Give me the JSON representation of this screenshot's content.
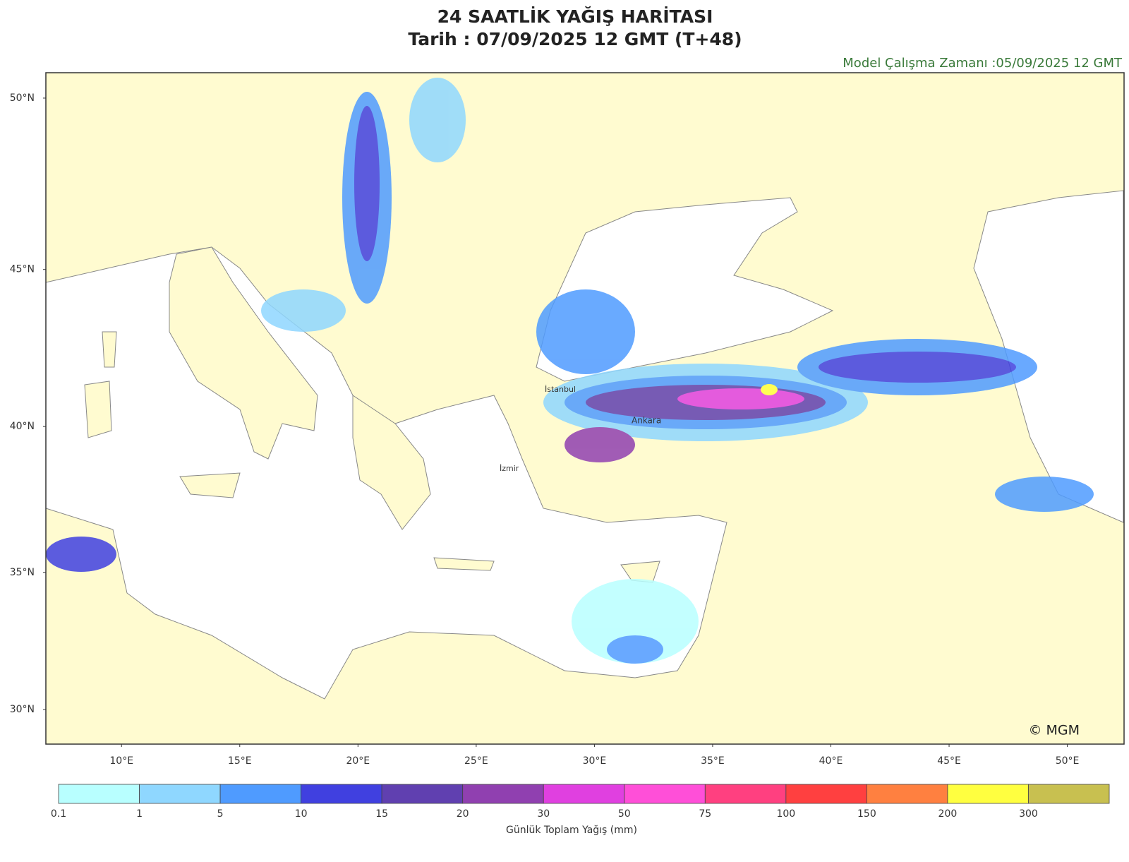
{
  "header": {
    "title": "24 SAATLİK YAĞIŞ HARİTASI",
    "subtitle": "Tarih : 07/09/2025  12 GMT (T+48)",
    "model_run": "Model Çalışma Zamanı :05/09/2025  12 GMT"
  },
  "map": {
    "xlim": [
      6.8,
      52.4
    ],
    "ylim": [
      28.7,
      50.7
    ],
    "xticks": [
      {
        "value": 10,
        "label": "10°E"
      },
      {
        "value": 15,
        "label": "15°E"
      },
      {
        "value": 20,
        "label": "20°E"
      },
      {
        "value": 25,
        "label": "25°E"
      },
      {
        "value": 30,
        "label": "30°E"
      },
      {
        "value": 35,
        "label": "35°E"
      },
      {
        "value": 40,
        "label": "40°E"
      },
      {
        "value": 45,
        "label": "45°E"
      },
      {
        "value": 50,
        "label": "50°E"
      }
    ],
    "yticks": [
      {
        "value": 30,
        "label": "30°N"
      },
      {
        "value": 35,
        "label": "35°N"
      },
      {
        "value": 40,
        "label": "40°N"
      },
      {
        "value": 45,
        "label": "45°N"
      },
      {
        "value": 50,
        "label": "50°N"
      }
    ],
    "cities": [
      "İstanbul",
      "Ankara",
      "İzmir"
    ],
    "copyright": "© MGM"
  },
  "colorbar": {
    "bounds": [
      0.1,
      1,
      5,
      10,
      15,
      20,
      30,
      50,
      75,
      100,
      150,
      200,
      300
    ],
    "colors": [
      "#b8ffff",
      "#8fd7ff",
      "#4f9bff",
      "#4040e0",
      "#6040b0",
      "#9040b0",
      "#e040e0",
      "#ff4fd8",
      "#ff4080",
      "#ff4040",
      "#ff8040",
      "#ffff40",
      "#c8c050"
    ],
    "label": "Günlük Toplam Yağış (mm)"
  }
}
